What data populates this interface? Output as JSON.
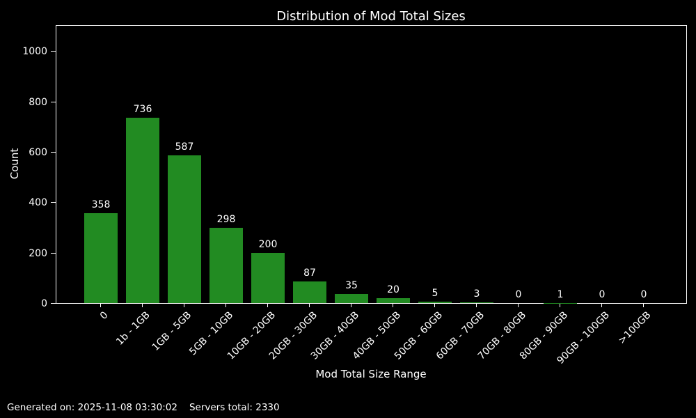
{
  "title": "Distribution of Mod Total Sizes",
  "chart_data": {
    "type": "bar",
    "title": "Distribution of Mod Total Sizes",
    "xlabel": "Mod Total Size Range",
    "ylabel": "Count",
    "categories": [
      "0",
      "1b - 1GB",
      "1GB - 5GB",
      "5GB - 10GB",
      "10GB - 20GB",
      "20GB - 30GB",
      "30GB - 40GB",
      "40GB - 50GB",
      "50GB - 60GB",
      "60GB - 70GB",
      "70GB - 80GB",
      "80GB - 90GB",
      "90GB - 100GB",
      ">100GB"
    ],
    "values": [
      358,
      736,
      587,
      298,
      200,
      87,
      35,
      20,
      5,
      3,
      0,
      1,
      0,
      0
    ],
    "yticks": [
      0,
      200,
      400,
      600,
      800,
      1000
    ],
    "ylim": [
      0,
      1100
    ],
    "bar_color": "#228b22",
    "background_color": "#000000",
    "text_color": "#ffffff",
    "grid": false,
    "legend": null,
    "value_labels_shown": true,
    "xtick_rotation_deg": 45
  },
  "footer": {
    "generated": "Generated on: 2025-11-08 03:30:02",
    "servers_total": "Servers total: 2330"
  }
}
